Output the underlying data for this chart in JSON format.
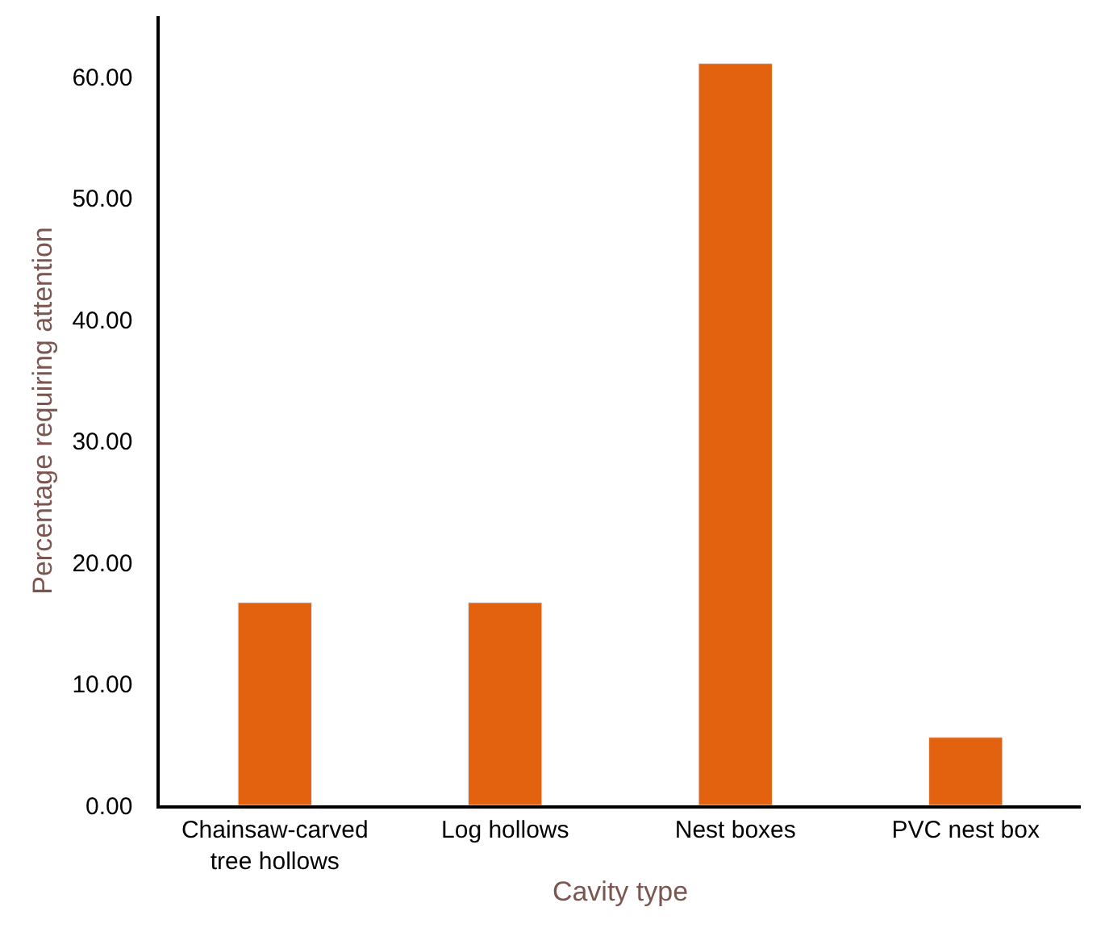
{
  "chart_data": {
    "type": "bar",
    "xlabel": "Cavity type",
    "ylabel": "Percentage requiring attention",
    "categories": [
      "Chainsaw-carved tree hollows",
      "Log hollows",
      "Nest boxes",
      "PVC nest box"
    ],
    "values": [
      16.7,
      16.7,
      61.1,
      5.6
    ],
    "color": "#e2620f",
    "ylim": [
      0,
      65
    ],
    "yticks": [
      {
        "value": 0,
        "label": "0.00"
      },
      {
        "value": 10,
        "label": "10.00"
      },
      {
        "value": 20,
        "label": "20.00"
      },
      {
        "value": 30,
        "label": "30.00"
      },
      {
        "value": 40,
        "label": "40.00"
      },
      {
        "value": 50,
        "label": "50.00"
      },
      {
        "value": 60,
        "label": "60.00"
      }
    ],
    "grid": false
  }
}
